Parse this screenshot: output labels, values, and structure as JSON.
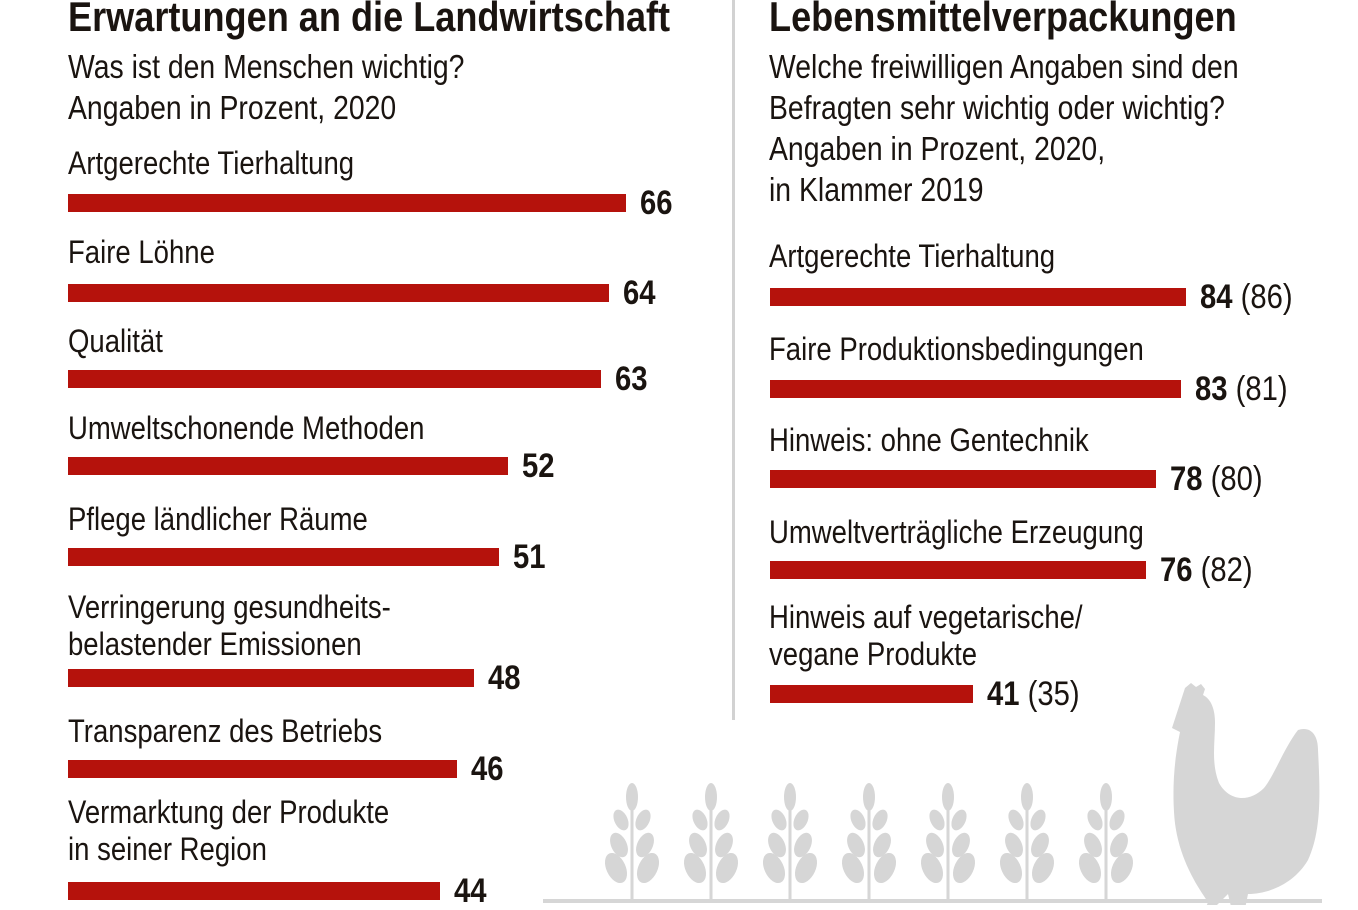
{
  "colors": {
    "bar": "#b5120c",
    "decoration": "#d6d6d6",
    "text": "#1a1410"
  },
  "chart_data": [
    {
      "type": "bar",
      "orientation": "horizontal",
      "title": "Erwartungen an die Landwirtschaft",
      "subtitle": [
        "Was ist den Menschen wichtig?",
        "Angaben in Prozent, 2020"
      ],
      "categories": [
        "Artgerechte Tierhaltung",
        "Faire Löhne",
        "Qualität",
        "Umweltschonende Methoden",
        "Pflege ländlicher Räume",
        "Verringerung gesundheits-\nbelastender Emissionen",
        "Transparenz des Betriebs",
        "Vermarktung der Produkte\nin seiner Region"
      ],
      "values": [
        66,
        64,
        63,
        52,
        51,
        48,
        46,
        44
      ]
    },
    {
      "type": "bar",
      "orientation": "horizontal",
      "title": "Lebensmittelverpackungen",
      "subtitle": [
        "Welche freiwilligen Angaben sind den",
        "Befragten sehr wichtig oder wichtig?",
        "Angaben in Prozent, 2020,",
        "in Klammer 2019"
      ],
      "categories": [
        "Artgerechte Tierhaltung",
        "Faire Produktionsbedingungen",
        "Hinweis: ohne Gentechnik",
        "Umweltverträgliche Erzeugung",
        "Hinweis auf vegetarische/\nvegane Produkte"
      ],
      "series": [
        {
          "name": "2020",
          "values": [
            84,
            83,
            78,
            76,
            41
          ]
        },
        {
          "name": "2019",
          "values": [
            86,
            81,
            80,
            82,
            35
          ]
        }
      ]
    }
  ],
  "decoration": {
    "icons": [
      "wheat-icon",
      "chicken-icon"
    ]
  }
}
